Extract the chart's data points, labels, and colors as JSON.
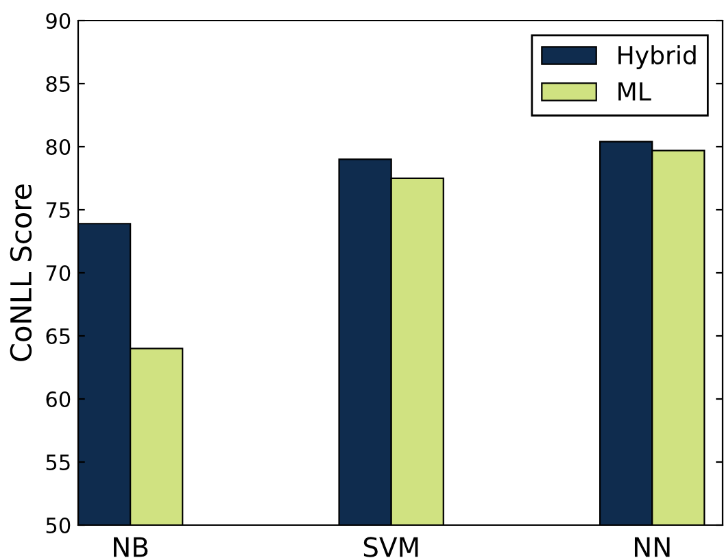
{
  "chart_data": {
    "type": "bar",
    "ylabel": "CoNLL Score",
    "categories": [
      "NB",
      "SVM",
      "NN"
    ],
    "series": [
      {
        "name": "Hybrid",
        "color": "#0f2c4e",
        "values": [
          73.9,
          79.0,
          80.4
        ]
      },
      {
        "name": "ML",
        "color": "#d0e281",
        "values": [
          64.0,
          77.5,
          79.7
        ]
      }
    ],
    "ylim": [
      50,
      90
    ],
    "yticks": [
      50,
      55,
      60,
      65,
      70,
      75,
      80,
      85,
      90
    ],
    "grid": false,
    "legend": "top right"
  }
}
